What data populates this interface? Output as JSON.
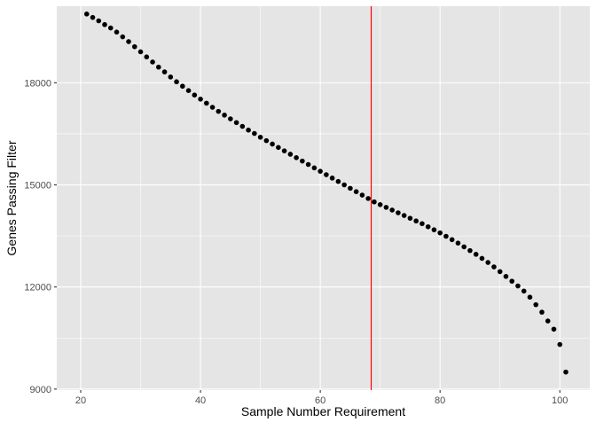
{
  "chart_data": {
    "type": "scatter",
    "title": "",
    "xlabel": "Sample Number Requirement",
    "ylabel": "Genes Passing Filter",
    "xlim": [
      16.0,
      105.0
    ],
    "ylim": [
      8970,
      20250
    ],
    "x_ticks": [
      20,
      40,
      60,
      80,
      100
    ],
    "y_ticks": [
      9000,
      12000,
      15000,
      18000
    ],
    "x_tick_labels": [
      "20",
      "40",
      "60",
      "80",
      "100"
    ],
    "y_tick_labels": [
      "9000",
      "12000",
      "15000",
      "18000"
    ],
    "grid": true,
    "legend": "none",
    "vline": {
      "x": 68.5,
      "color": "#ff0000"
    },
    "series": [
      {
        "color": "#000000",
        "x": [
          21,
          22,
          23,
          24,
          25,
          26,
          27,
          28,
          29,
          30,
          31,
          32,
          33,
          34,
          35,
          36,
          37,
          38,
          39,
          40,
          41,
          42,
          43,
          44,
          45,
          46,
          47,
          48,
          49,
          50,
          51,
          52,
          53,
          54,
          55,
          56,
          57,
          58,
          59,
          60,
          61,
          62,
          63,
          64,
          65,
          66,
          67,
          68,
          69,
          70,
          71,
          72,
          73,
          74,
          75,
          76,
          77,
          78,
          79,
          80,
          81,
          82,
          83,
          84,
          85,
          86,
          87,
          88,
          89,
          90,
          91,
          92,
          93,
          94,
          95,
          96,
          97,
          98,
          99,
          100,
          101
        ],
        "y": [
          20020,
          19920,
          19820,
          19710,
          19610,
          19490,
          19350,
          19210,
          19060,
          18910,
          18760,
          18610,
          18460,
          18320,
          18170,
          18030,
          17900,
          17770,
          17640,
          17520,
          17400,
          17280,
          17160,
          17050,
          16940,
          16830,
          16720,
          16610,
          16510,
          16400,
          16300,
          16200,
          16100,
          16000,
          15900,
          15800,
          15700,
          15600,
          15500,
          15400,
          15300,
          15200,
          15100,
          15000,
          14900,
          14800,
          14700,
          14600,
          14500,
          14420,
          14340,
          14260,
          14180,
          14100,
          14020,
          13940,
          13860,
          13770,
          13680,
          13590,
          13490,
          13390,
          13290,
          13180,
          13070,
          12960,
          12840,
          12720,
          12590,
          12450,
          12310,
          12170,
          12030,
          11880,
          11700,
          11480,
          11260,
          11000,
          10760,
          10310,
          9500
        ]
      }
    ]
  },
  "colors": {
    "panel_background": "#e5e5e5",
    "grid_major": "#ffffff",
    "point": "#000000",
    "reference_line": "#ff0000"
  }
}
